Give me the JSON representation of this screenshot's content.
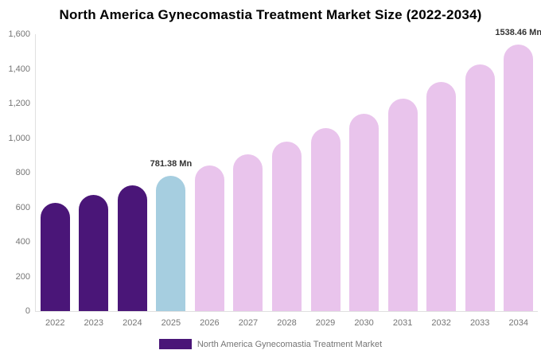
{
  "title": "North America Gynecomastia Treatment Market Size (2022-2034)",
  "legend": {
    "label": "North America Gynecomastia Treatment Market"
  },
  "colors": {
    "historical": "#4A1678",
    "base_year": "#A6CEE0",
    "forecast": "#E9C4EC",
    "axis_line": "#E0E0E0",
    "axis_text": "#757575",
    "data_label": "#333333",
    "title_text": "#000000"
  },
  "chart_data": {
    "type": "bar",
    "title": "North America Gynecomastia Treatment Market Size (2022-2034)",
    "unit": "Mn",
    "categories": [
      "2022",
      "2023",
      "2024",
      "2025",
      "2026",
      "2027",
      "2028",
      "2029",
      "2030",
      "2031",
      "2032",
      "2033",
      "2034"
    ],
    "values": [
      623,
      672,
      725,
      781.38,
      842,
      908,
      979,
      1056,
      1139,
      1228,
      1324,
      1427,
      1538.46
    ],
    "segments": [
      "historical",
      "historical",
      "historical",
      "base_year",
      "forecast",
      "forecast",
      "forecast",
      "forecast",
      "forecast",
      "forecast",
      "forecast",
      "forecast",
      "forecast"
    ],
    "data_labels": [
      {
        "category": "2025",
        "text": "781.38 Mn"
      },
      {
        "category": "2034",
        "text": "1538.46 Mn"
      }
    ],
    "xlabel": "",
    "ylabel": "",
    "ylim": [
      0,
      1600
    ],
    "y_ticks": [
      "0",
      "200",
      "400",
      "600",
      "800",
      "1,000",
      "1,200",
      "1,400",
      "1,600"
    ],
    "grid": false,
    "legend_position": "bottom"
  }
}
